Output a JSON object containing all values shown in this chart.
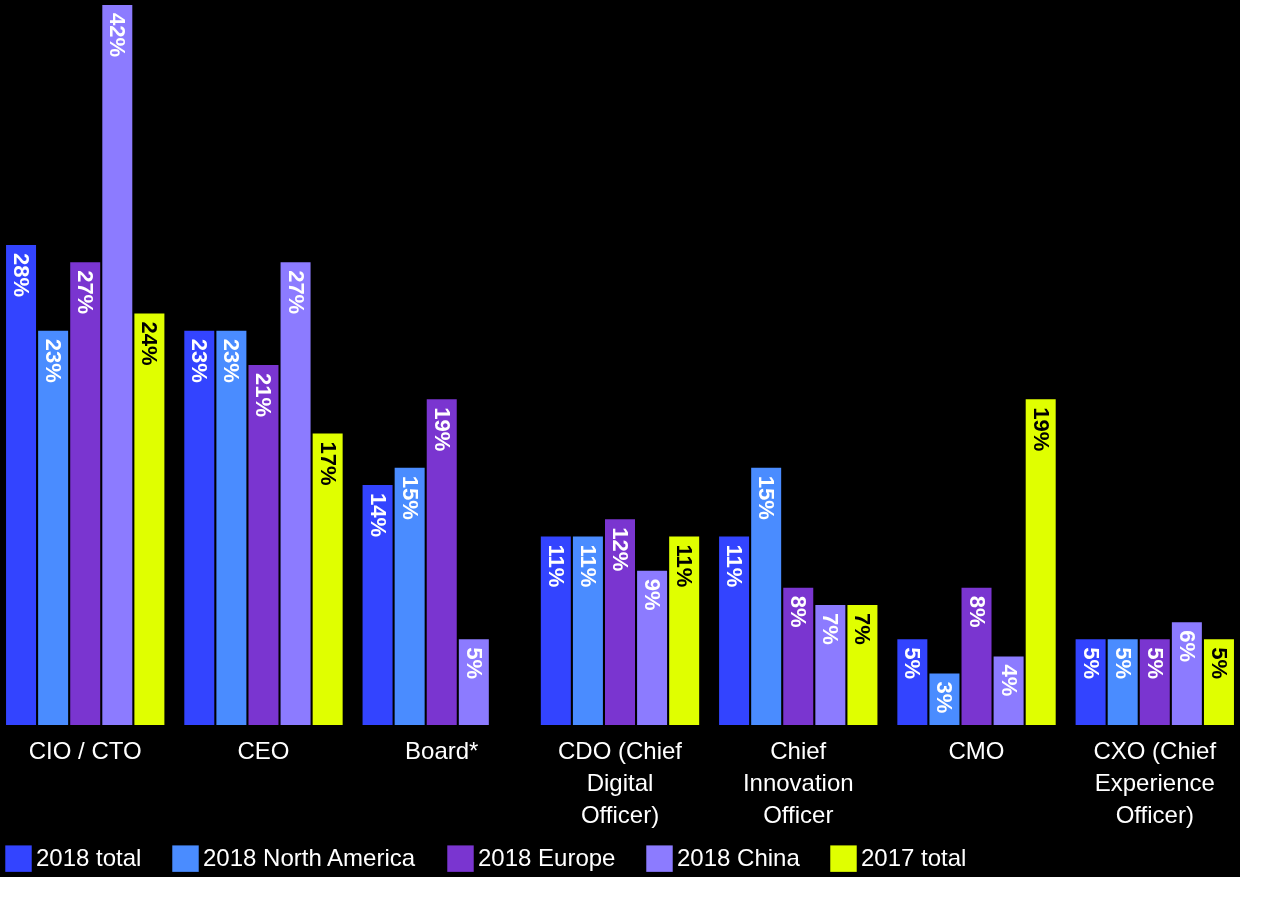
{
  "chart_data": {
    "type": "bar",
    "categories": [
      "CIO / CTO",
      "CEO",
      "Board*",
      "CDO (Chief Digital Officer)",
      "Chief Innovation Officer",
      "CMO",
      "CXO (Chief Experience Officer)"
    ],
    "series": [
      {
        "name": "2018 total",
        "color": "#3344ff",
        "values": [
          28,
          23,
          14,
          11,
          11,
          5,
          5
        ],
        "value_labels": [
          "28%",
          "23%",
          "14%",
          "11%",
          "11%",
          "5%",
          "5%"
        ]
      },
      {
        "name": "2018 North America",
        "color": "#4a8cff",
        "values": [
          23,
          23,
          15,
          11,
          15,
          3,
          5
        ],
        "value_labels": [
          "23%",
          "23%",
          "15%",
          "11%",
          "15%",
          "3%",
          "5%"
        ]
      },
      {
        "name": "2018 Europe",
        "color": "#7a35d0",
        "values": [
          27,
          21,
          19,
          12,
          8,
          8,
          5
        ],
        "value_labels": [
          "27%",
          "21%",
          "19%",
          "12%",
          "8%",
          "8%",
          "5%"
        ]
      },
      {
        "name": "2018 China",
        "color": "#8c7bff",
        "values": [
          42,
          27,
          5,
          9,
          7,
          4,
          6
        ],
        "value_labels": [
          "42%",
          "27%",
          "5%",
          "9%",
          "7%",
          "4%",
          "6%"
        ]
      },
      {
        "name": "2017 total",
        "color": "#e0ff00",
        "values": [
          24,
          17,
          null,
          11,
          7,
          19,
          5
        ],
        "value_labels": [
          "24%",
          "17%",
          null,
          "11%",
          "7%",
          "19%",
          "5%"
        ]
      }
    ],
    "legend": "bottom",
    "grid": false
  }
}
